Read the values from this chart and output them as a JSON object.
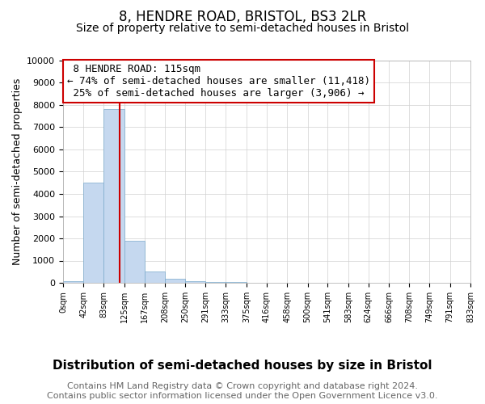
{
  "title": "8, HENDRE ROAD, BRISTOL, BS3 2LR",
  "subtitle": "Size of property relative to semi-detached houses in Bristol",
  "xlabel": "Distribution of semi-detached houses by size in Bristol",
  "ylabel": "Number of semi-detached properties",
  "property_label": "8 HENDRE ROAD: 115sqm",
  "pct_smaller": 74,
  "n_smaller": "11,418",
  "pct_larger": 25,
  "n_larger": "3,906",
  "bin_edges": [
    0,
    42,
    83,
    125,
    167,
    208,
    250,
    291,
    333,
    375,
    416,
    458,
    500,
    541,
    583,
    624,
    666,
    708,
    749,
    791,
    833
  ],
  "bar_heights": [
    70,
    4500,
    7800,
    1900,
    500,
    200,
    80,
    40,
    20,
    5,
    2,
    1,
    0,
    0,
    0,
    0,
    0,
    0,
    0,
    0
  ],
  "bar_color": "#c5d8ef",
  "bar_edgecolor": "#7aaacc",
  "vline_x": 115,
  "vline_color": "#cc0000",
  "annotation_box_color": "#cc0000",
  "ylim": [
    0,
    10000
  ],
  "yticks": [
    0,
    1000,
    2000,
    3000,
    4000,
    5000,
    6000,
    7000,
    8000,
    9000,
    10000
  ],
  "grid_color": "#d0d0d0",
  "background_color": "#ffffff",
  "footer_text": "Contains HM Land Registry data © Crown copyright and database right 2024.\nContains public sector information licensed under the Open Government Licence v3.0.",
  "title_fontsize": 12,
  "subtitle_fontsize": 10,
  "xlabel_fontsize": 11,
  "ylabel_fontsize": 9,
  "annotation_fontsize": 9,
  "footer_fontsize": 8
}
